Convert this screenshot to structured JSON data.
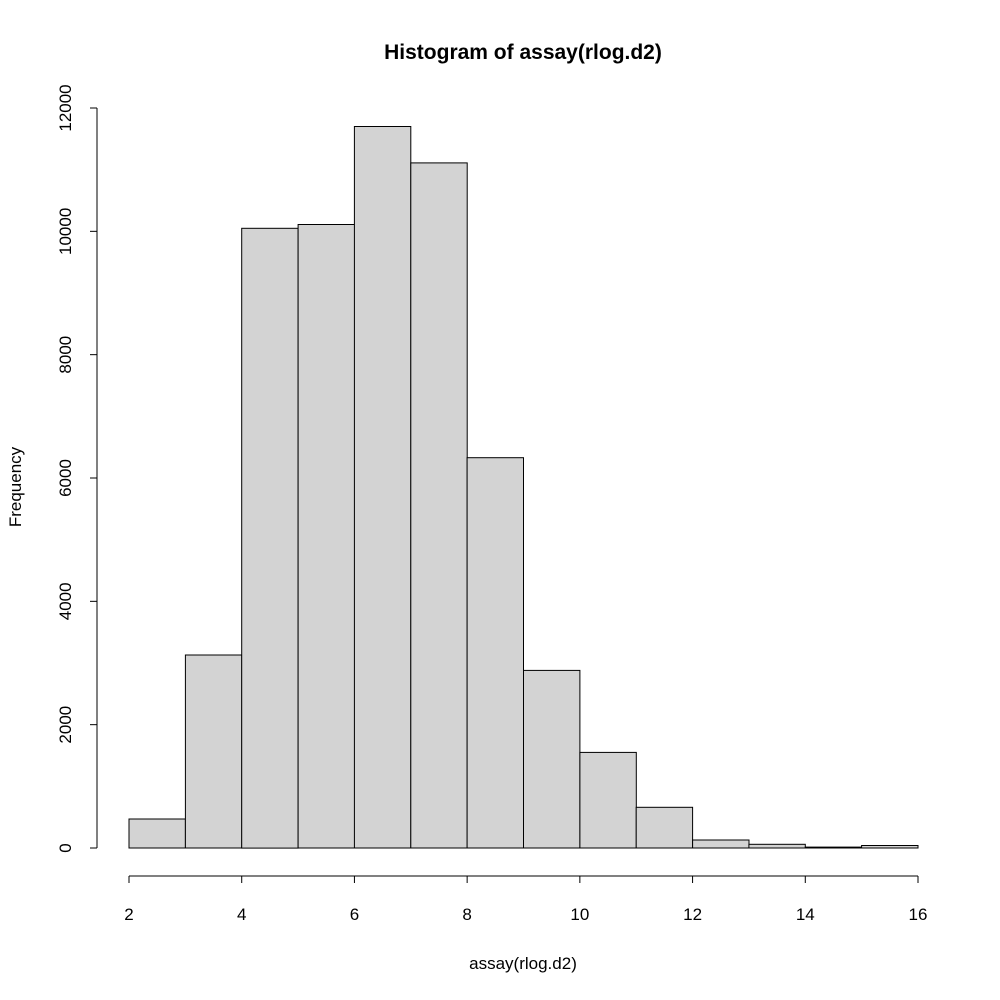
{
  "chart_data": {
    "type": "bar",
    "title": "Histogram of assay(rlog.d2)",
    "xlabel": "assay(rlog.d2)",
    "ylabel": "Frequency",
    "bins": [
      {
        "from": 2,
        "to": 3,
        "count": 470
      },
      {
        "from": 3,
        "to": 4,
        "count": 3130
      },
      {
        "from": 4,
        "to": 5,
        "count": 10050
      },
      {
        "from": 5,
        "to": 6,
        "count": 10110
      },
      {
        "from": 6,
        "to": 7,
        "count": 11700
      },
      {
        "from": 7,
        "to": 8,
        "count": 11110
      },
      {
        "from": 8,
        "to": 9,
        "count": 6330
      },
      {
        "from": 9,
        "to": 10,
        "count": 2880
      },
      {
        "from": 10,
        "to": 11,
        "count": 1550
      },
      {
        "from": 11,
        "to": 12,
        "count": 660
      },
      {
        "from": 12,
        "to": 13,
        "count": 130
      },
      {
        "from": 13,
        "to": 14,
        "count": 60
      },
      {
        "from": 14,
        "to": 15,
        "count": 15
      },
      {
        "from": 15,
        "to": 16,
        "count": 40
      }
    ],
    "xlim": [
      2,
      16
    ],
    "ylim": [
      0,
      12000
    ],
    "x_ticks": [
      2,
      4,
      6,
      8,
      10,
      12,
      14,
      16
    ],
    "y_ticks": [
      0,
      2000,
      4000,
      6000,
      8000,
      10000,
      12000
    ],
    "bar_color": "#d3d3d3",
    "grid": false
  }
}
